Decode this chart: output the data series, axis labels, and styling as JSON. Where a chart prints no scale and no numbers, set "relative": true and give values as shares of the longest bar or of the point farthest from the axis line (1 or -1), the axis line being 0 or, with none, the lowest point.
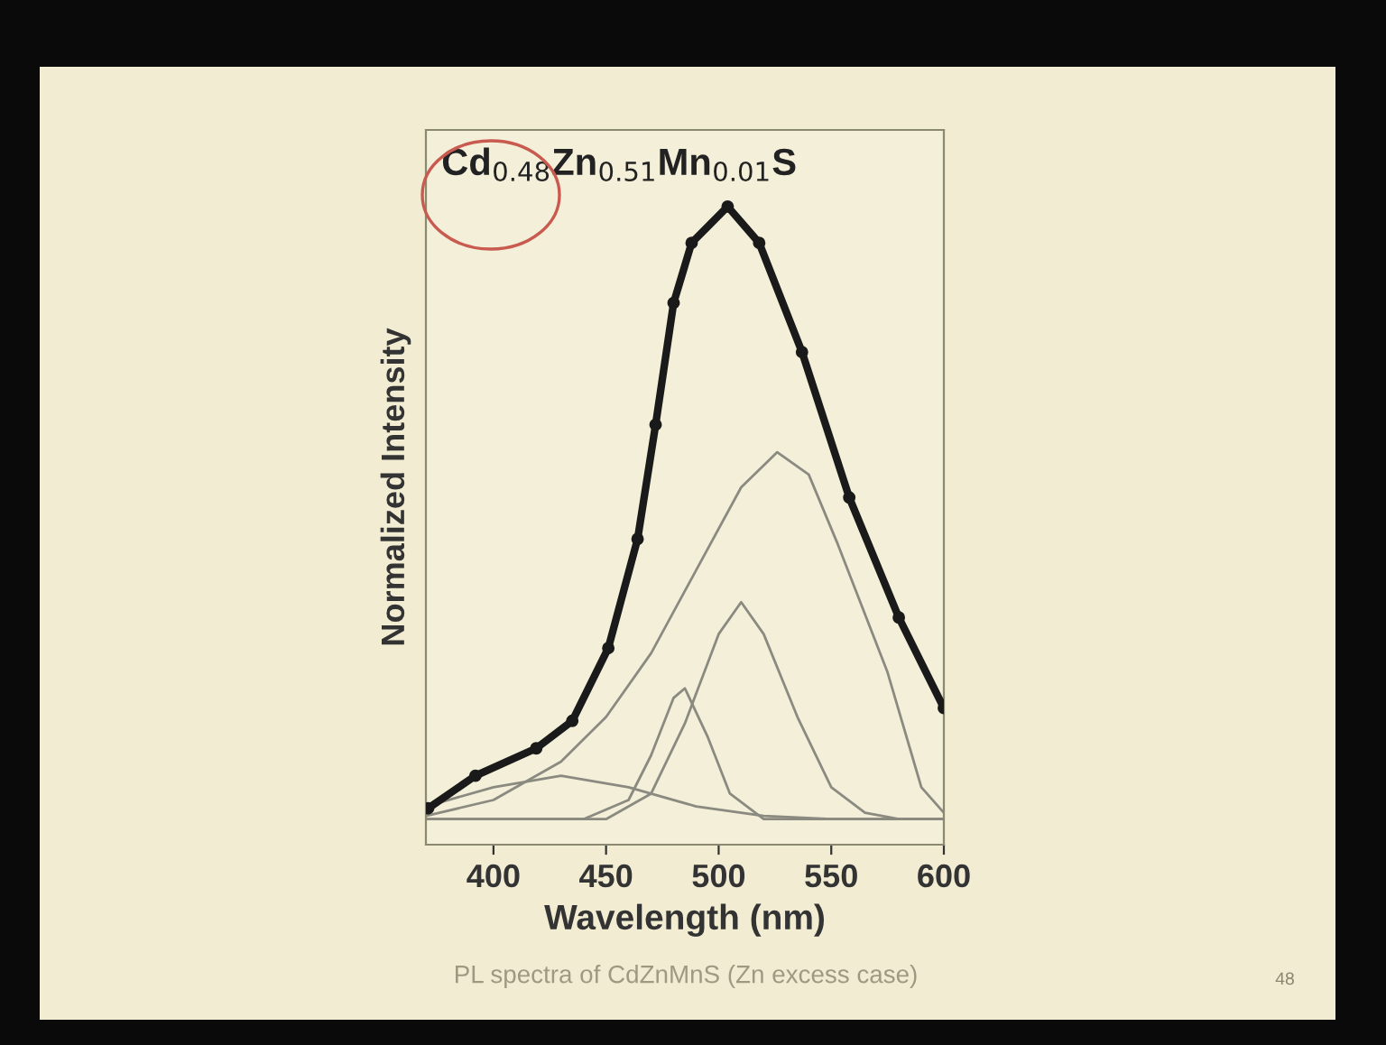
{
  "chart_data": {
    "type": "line",
    "relative": true,
    "xlabel": "Wavelength (nm)",
    "ylabel": "Normalized Intensity",
    "xlim": [
      370,
      600
    ],
    "xticks": [
      400,
      450,
      500,
      550,
      600
    ],
    "grid": false,
    "legend": false,
    "tick_labels": "x",
    "line_style": "solid",
    "annotations": [
      "Cd$_{0.48}$Zn$_{0.51}$Mn$_{0.01}$S",
      "PL spectra of CdZnMnS (Zn excess case)",
      "48"
    ],
    "series": [
      {
        "color": "#1a1a1a",
        "marker": "circle",
        "x": [
          371,
          392,
          419,
          435,
          451,
          464,
          472,
          480,
          488,
          504,
          518,
          537,
          558,
          580,
          600
        ],
        "values": [
          0.057,
          0.108,
          0.151,
          0.194,
          0.308,
          0.479,
          0.658,
          0.849,
          0.943,
          1.0,
          0.943,
          0.772,
          0.544,
          0.356,
          0.214
        ]
      },
      {
        "color": "#8a8a80",
        "marker": "none",
        "x": [
          370,
          400,
          430,
          460,
          490,
          520,
          550,
          600
        ],
        "values": [
          0.06,
          0.09,
          0.108,
          0.09,
          0.06,
          0.045,
          0.04,
          0.04
        ]
      },
      {
        "color": "#8a8a80",
        "marker": "none",
        "x": [
          370,
          400,
          430,
          450,
          470,
          490,
          510,
          526,
          540,
          553,
          575,
          590,
          600
        ],
        "values": [
          0.045,
          0.07,
          0.13,
          0.2,
          0.3,
          0.43,
          0.56,
          0.615,
          0.58,
          0.47,
          0.27,
          0.09,
          0.05
        ]
      },
      {
        "color": "#8a8a80",
        "marker": "none",
        "x": [
          370,
          440,
          460,
          470,
          480,
          485,
          495,
          505,
          520,
          600
        ],
        "values": [
          0.04,
          0.04,
          0.07,
          0.14,
          0.23,
          0.245,
          0.17,
          0.08,
          0.04,
          0.04
        ]
      },
      {
        "color": "#8a8a80",
        "marker": "none",
        "x": [
          370,
          450,
          470,
          485,
          500,
          510,
          520,
          535,
          550,
          565,
          580,
          600
        ],
        "values": [
          0.04,
          0.04,
          0.08,
          0.19,
          0.33,
          0.38,
          0.33,
          0.2,
          0.09,
          0.05,
          0.04,
          0.04
        ]
      }
    ]
  }
}
